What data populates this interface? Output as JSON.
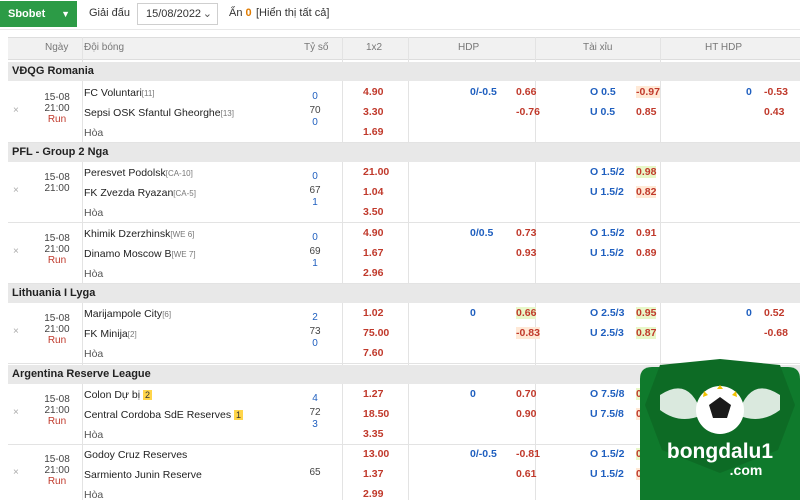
{
  "toolbar": {
    "bookie": "Sbobet",
    "league_btn": "Giải đấu",
    "date": "15/08/2022",
    "hidden_label": "Ẩn",
    "hidden_count": "0",
    "show_all": "[Hiển thị tất cả]"
  },
  "header": {
    "time": "Ngày",
    "teams": "Đội bóng",
    "score": "Tỷ số",
    "1x2": "1x2",
    "hdp": "HDP",
    "ou": "Tài xỉu",
    "ht_hdp": "HT HDP"
  },
  "leagues": [
    "VĐQG Romania",
    "PFL - Group 2 Nga",
    "Lithuania I Lyga",
    "Argentina Reserve League"
  ],
  "matches": [
    {
      "date": "15-08",
      "time": "21:00",
      "status": "Run",
      "home": "FC Voluntari",
      "home_rank": "[11]",
      "away": "Sepsi OSK Sfantul Gheorghe",
      "away_rank": "[13]",
      "draw": "Hòa",
      "s1": "0",
      "s2": "70",
      "s3": "0",
      "o1": "4.90",
      "o2": "3.30",
      "o3": "1.69",
      "hdp_line": "0/-0.5",
      "hdp_h": "0.66",
      "hdp_a": "-0.76",
      "ou_h": "O 0.5",
      "ou_h_v": "-0.97",
      "ou_a": "U 0.5",
      "ou_a_v": "0.85",
      "ht_line": "0",
      "ht_h": "-0.53",
      "ht_a": "0.43"
    },
    {
      "date": "15-08",
      "time": "21:00",
      "status": "",
      "home": "Peresvet Podolsk",
      "home_rank": "[CA-10]",
      "away": "FK Zvezda Ryazan",
      "away_rank": "[CA-5]",
      "draw": "Hòa",
      "s1": "0",
      "s2": "67",
      "s3": "1",
      "o1": "21.00",
      "o2": "1.04",
      "o3": "3.50",
      "hdp_line": "",
      "hdp_h": "",
      "hdp_a": "",
      "ou_h": "O 1.5/2",
      "ou_h_v": "0.98",
      "ou_a": "U 1.5/2",
      "ou_a_v": "0.82",
      "ht_line": "",
      "ht_h": "",
      "ht_a": ""
    },
    {
      "date": "15-08",
      "time": "21:00",
      "status": "Run",
      "home": "Khimik Dzerzhinsk",
      "home_rank": "[WE 6]",
      "away": "Dinamo Moscow B",
      "away_rank": "[WE 7]",
      "draw": "Hòa",
      "s1": "0",
      "s2": "69",
      "s3": "1",
      "o1": "4.90",
      "o2": "1.67",
      "o3": "2.96",
      "hdp_line": "0/0.5",
      "hdp_h": "0.73",
      "hdp_a": "0.93",
      "ou_h": "O 1.5/2",
      "ou_h_v": "0.91",
      "ou_a": "U 1.5/2",
      "ou_a_v": "0.89",
      "ht_line": "",
      "ht_h": "",
      "ht_a": ""
    },
    {
      "date": "15-08",
      "time": "21:00",
      "status": "Run",
      "home": "Marijampole City",
      "home_rank": "[6]",
      "away": "FK Minija",
      "away_rank": "[2]",
      "draw": "Hòa",
      "s1": "2",
      "s2": "73",
      "s3": "0",
      "o1": "1.02",
      "o2": "75.00",
      "o3": "7.60",
      "hdp_line": "0",
      "hdp_h": "0.66",
      "hdp_a": "-0.83",
      "ou_h": "O 2.5/3",
      "ou_h_v": "0.95",
      "ou_a": "U 2.5/3",
      "ou_a_v": "0.87",
      "ht_line": "0",
      "ht_h": "0.52",
      "ht_a": "-0.68"
    },
    {
      "date": "15-08",
      "time": "21:00",
      "status": "Run",
      "home": "Colon Dự bị",
      "home_badge": "2",
      "away": "Central Cordoba SdE Reserves",
      "away_badge": "1",
      "draw": "Hòa",
      "s1": "4",
      "s2": "72",
      "s3": "3",
      "o1": "1.27",
      "o2": "18.50",
      "o3": "3.35",
      "hdp_line": "0",
      "hdp_h": "0.70",
      "hdp_a": "0.90",
      "ou_h": "O 7.5/8",
      "ou_h_v": "0.86",
      "ou_a": "U 7.5/8",
      "ou_a_v": "0.94"
    },
    {
      "date": "15-08",
      "time": "21:00",
      "status": "Run",
      "home": "Godoy Cruz Reserves",
      "away": "Sarmiento Junin Reserve",
      "draw": "Hòa",
      "s1": "",
      "s2": "65",
      "s3": "",
      "o1": "13.00",
      "o2": "1.37",
      "o3": "2.99",
      "hdp_line": "0/-0.5",
      "hdp_h": "-0.81",
      "hdp_a": "0.61",
      "ou_h": "O 1.5/2",
      "ou_h_v": "0.86",
      "ou_a": "U 1.5/2",
      "ou_a_v": "0.94"
    }
  ],
  "logo": {
    "text": "bongdalu1",
    "domain": ".com"
  },
  "colors": {
    "brand_green": "#2c9b46",
    "odds_red": "#c0392b",
    "odds_blue": "#1f5fbf"
  }
}
